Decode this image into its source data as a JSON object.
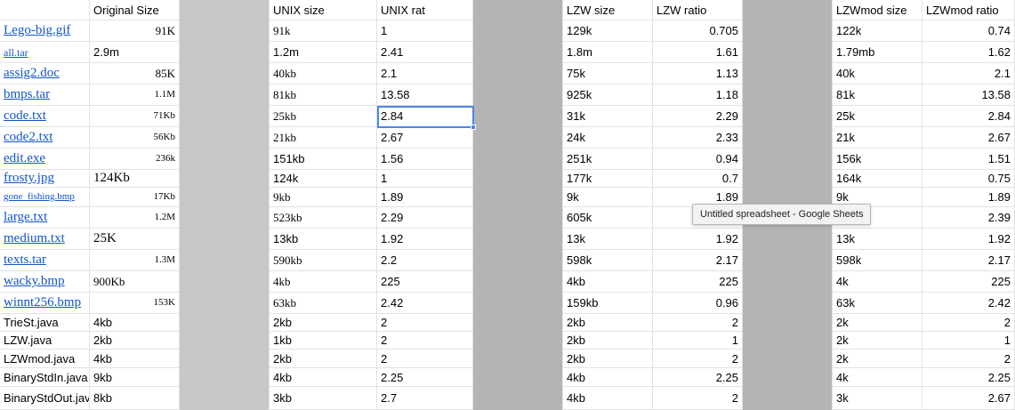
{
  "colors": {
    "gray_light": "#c8c8c8",
    "gray_dark": "#b4b4b4",
    "link": "#1155cc",
    "selection": "#4a86e8"
  },
  "headers": [
    "",
    "Original Size",
    "",
    "UNIX size",
    "UNIX rat",
    "",
    "LZW size",
    "LZW ratio",
    "",
    "LZWmod size",
    "LZWmod ratio"
  ],
  "rows": [
    {
      "file": "Lego-big.gif",
      "orig": "91K",
      "unix_size": "91k",
      "unix_rat": "1",
      "lzw_size": "129k",
      "lzw_ratio": "0.705",
      "mod_size": "122k",
      "mod_ratio": "0.74"
    },
    {
      "file": "all.tar",
      "orig": "2.9m",
      "unix_size": "1.2m",
      "unix_rat": "2.41",
      "lzw_size": "1.8m",
      "lzw_ratio": "1.61",
      "mod_size": "1.79mb",
      "mod_ratio": "1.62"
    },
    {
      "file": "assig2.doc",
      "orig": "85K",
      "unix_size": "40kb",
      "unix_rat": "2.1",
      "lzw_size": "75k",
      "lzw_ratio": "1.13",
      "mod_size": "40k",
      "mod_ratio": "2.1"
    },
    {
      "file": "bmps.tar",
      "orig": "1.1M",
      "unix_size": "81kb",
      "unix_rat": "13.58",
      "lzw_size": "925k",
      "lzw_ratio": "1.18",
      "mod_size": "81k",
      "mod_ratio": "13.58"
    },
    {
      "file": "code.txt",
      "orig": "71Kb",
      "unix_size": "25kb",
      "unix_rat": "2.84",
      "lzw_size": "31k",
      "lzw_ratio": "2.29",
      "mod_size": "25k",
      "mod_ratio": "2.84"
    },
    {
      "file": "code2.txt",
      "orig": "56Kb",
      "unix_size": "21kb",
      "unix_rat": "2.67",
      "lzw_size": "24k",
      "lzw_ratio": "2.33",
      "mod_size": "21k",
      "mod_ratio": "2.67"
    },
    {
      "file": "edit.exe",
      "orig": "236k",
      "unix_size": "151kb",
      "unix_rat": "1.56",
      "lzw_size": "251k",
      "lzw_ratio": "0.94",
      "mod_size": "156k",
      "mod_ratio": "1.51"
    },
    {
      "file": "frosty.jpg",
      "orig": "124Kb",
      "unix_size": "124k",
      "unix_rat": "1",
      "lzw_size": "177k",
      "lzw_ratio": "0.7",
      "mod_size": "164k",
      "mod_ratio": "0.75"
    },
    {
      "file": "gone_fishing.bmp",
      "orig": "17Kb",
      "unix_size": "9kb",
      "unix_rat": "1.89",
      "lzw_size": "9k",
      "lzw_ratio": "1.89",
      "mod_size": "9k",
      "mod_ratio": "1.89"
    },
    {
      "file": "large.txt",
      "orig": "1.2M",
      "unix_size": "523kb",
      "unix_rat": "2.29",
      "lzw_size": "605k",
      "lzw_ratio": "",
      "mod_size": "",
      "mod_ratio": "2.39"
    },
    {
      "file": "medium.txt",
      "orig": "25K",
      "unix_size": "13kb",
      "unix_rat": "1.92",
      "lzw_size": "13k",
      "lzw_ratio": "1.92",
      "mod_size": "13k",
      "mod_ratio": "1.92"
    },
    {
      "file": "texts.tar",
      "orig": "1.3M",
      "unix_size": "590kb",
      "unix_rat": "2.2",
      "lzw_size": "598k",
      "lzw_ratio": "2.17",
      "mod_size": "598k",
      "mod_ratio": "2.17"
    },
    {
      "file": "wacky.bmp",
      "orig": "900Kb",
      "unix_size": "4kb",
      "unix_rat": "225",
      "lzw_size": "4kb",
      "lzw_ratio": "225",
      "mod_size": "4k",
      "mod_ratio": "225"
    },
    {
      "file": "winnt256.bmp",
      "orig": "153K",
      "unix_size": "63kb",
      "unix_rat": "2.42",
      "lzw_size": "159kb",
      "lzw_ratio": "0.96",
      "mod_size": "63k",
      "mod_ratio": "2.42"
    },
    {
      "file": "TrieSt.java",
      "orig": "4kb",
      "unix_size": "2kb",
      "unix_rat": "2",
      "lzw_size": "2kb",
      "lzw_ratio": "2",
      "mod_size": "2k",
      "mod_ratio": "2"
    },
    {
      "file": "LZW.java",
      "orig": "2kb",
      "unix_size": "1kb",
      "unix_rat": "2",
      "lzw_size": "2kb",
      "lzw_ratio": "1",
      "mod_size": "2k",
      "mod_ratio": "1"
    },
    {
      "file": "LZWmod.java",
      "orig": "4kb",
      "unix_size": "2kb",
      "unix_rat": "2",
      "lzw_size": "2kb",
      "lzw_ratio": "2",
      "mod_size": "2k",
      "mod_ratio": "2"
    },
    {
      "file": "BinaryStdIn.java",
      "orig": "9kb",
      "unix_size": "4kb",
      "unix_rat": "2.25",
      "lzw_size": "4kb",
      "lzw_ratio": "2.25",
      "mod_size": "4k",
      "mod_ratio": "2.25"
    },
    {
      "file": "BinaryStdOut.jav",
      "orig": "8kb",
      "unix_size": "3kb",
      "unix_rat": "2.7",
      "lzw_size": "4kb",
      "lzw_ratio": "2",
      "mod_size": "3k",
      "mod_ratio": "2.67"
    }
  ],
  "tooltip": "Untitled spreadsheet - Google Sheets"
}
